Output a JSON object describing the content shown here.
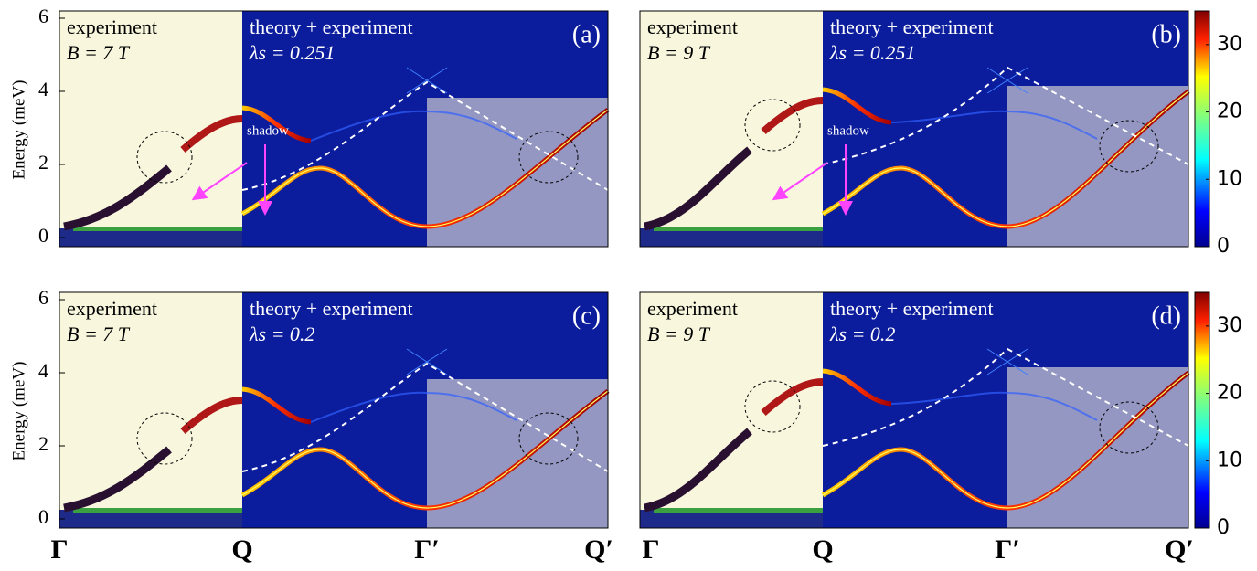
{
  "panels": [
    {
      "label": "(a)",
      "left_title": "experiment",
      "field": "B = 7 T",
      "right_title": "theory + experiment",
      "lambda": "λs = 0.251",
      "annotation": "shadow"
    },
    {
      "label": "(b)",
      "left_title": "experiment",
      "field": "B = 9 T",
      "right_title": "theory + experiment",
      "lambda": "λs = 0.251",
      "annotation": "shadow"
    },
    {
      "label": "(c)",
      "left_title": "experiment",
      "field": "B = 7 T",
      "right_title": "theory + experiment",
      "lambda": "λs = 0.2"
    },
    {
      "label": "(d)",
      "left_title": "experiment",
      "field": "B = 9 T",
      "right_title": "theory + experiment",
      "lambda": "λs = 0.2"
    }
  ],
  "y_axis": {
    "label": "Energy (meV)",
    "ticks": [
      0,
      2,
      4,
      6
    ]
  },
  "x_labels": [
    "Γ",
    "Q",
    "Γ′",
    "Q′"
  ],
  "colorbar": {
    "ticks": [
      0,
      10,
      20,
      30
    ]
  }
}
